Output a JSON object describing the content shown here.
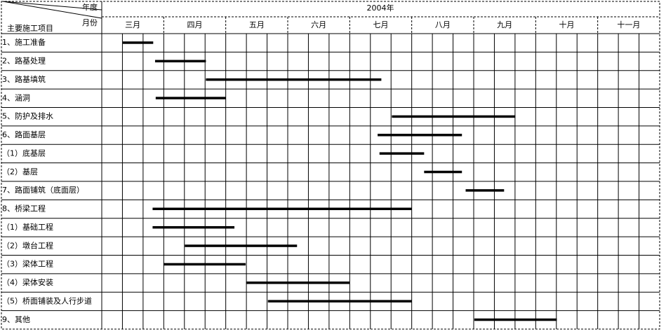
{
  "chart_data": {
    "type": "gantt",
    "corner_top": "年度",
    "corner_bottom": "月份",
    "row_header": "主要施工项目",
    "year": "2004年",
    "months": [
      "三月",
      "四月",
      "五月",
      "六月",
      "七月",
      "八月",
      "九月",
      "十月",
      "十一月"
    ],
    "xlim": [
      3,
      12
    ],
    "categories": [
      "1、施工准备",
      "2、路基处理",
      "3、路基填筑",
      "4、涵洞",
      "5、防护及排水",
      "6、路面基层",
      "（1）底基层",
      "（2）基层",
      "7、路面铺筑（底面层）",
      "8、桥梁工程",
      "（1）基础工程",
      "（2）墩台工程",
      "（3）梁体工程",
      "（4）梁体安装",
      "（5）桥面铺装及人行步道",
      "9、其他"
    ],
    "start": [
      3.34,
      3.86,
      4.68,
      3.87,
      7.68,
      7.45,
      7.48,
      8.2,
      8.87,
      3.82,
      3.82,
      4.34,
      4.0,
      5.33,
      5.68,
      9.01
    ],
    "end": [
      3.83,
      4.68,
      7.51,
      5.0,
      9.67,
      8.81,
      8.2,
      8.81,
      9.49,
      8.0,
      5.14,
      6.15,
      5.32,
      7.0,
      8.0,
      10.34
    ],
    "color": "#000000"
  }
}
